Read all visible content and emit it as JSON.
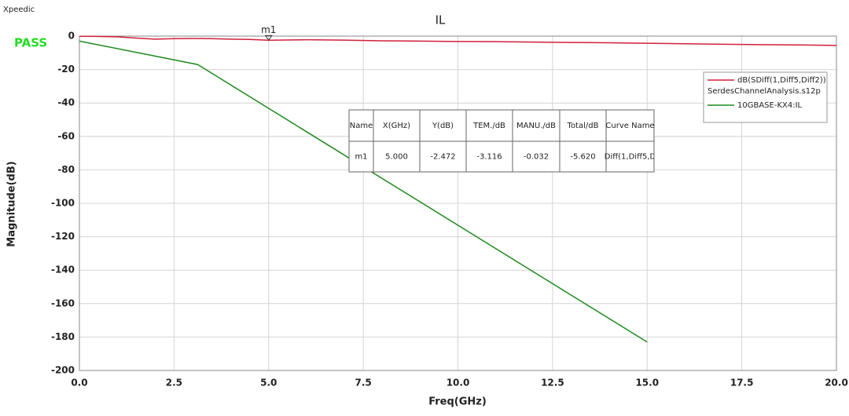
{
  "brand": "Xpeedic",
  "status": "PASS",
  "chart_data": {
    "type": "line",
    "title": "IL",
    "x_label": "Freq(GHz)",
    "y_label": "Magnitude(dB)",
    "xlim": [
      0,
      20
    ],
    "ylim": [
      -200,
      0
    ],
    "xticks": [
      {
        "value": 0,
        "label": "0.0"
      },
      2.5,
      {
        "value": 5,
        "label": "5.0"
      },
      7.5,
      {
        "value": 10,
        "label": "10.0"
      },
      12.5,
      {
        "value": 15,
        "label": "15.0"
      },
      17.5,
      {
        "value": 20,
        "label": "20.0"
      }
    ],
    "yticks": [
      0,
      -20,
      -40,
      -60,
      -80,
      -100,
      -120,
      -140,
      -160,
      -180,
      -200
    ],
    "grid": true,
    "legend": "upper right",
    "series": [
      {
        "name": "dB(SDiff(1,Diff5,Diff2))",
        "file": "SerdesChannelAnalysis.s12p",
        "color": "#d0203c",
        "x": [
          0,
          0.5,
          1,
          1.5,
          2,
          2.5,
          3,
          3.5,
          4,
          4.5,
          5,
          6,
          7,
          8,
          9,
          10,
          11,
          12,
          13,
          14,
          15,
          16,
          17,
          18,
          19,
          20
        ],
        "values": [
          -0.1,
          -0.2,
          -0.4,
          -1.2,
          -1.8,
          -1.5,
          -1.4,
          -1.5,
          -1.8,
          -2.0,
          -2.472,
          -2.2,
          -2.4,
          -2.8,
          -3.0,
          -3.2,
          -3.3,
          -3.6,
          -3.8,
          -4.0,
          -4.3,
          -4.6,
          -4.9,
          -5.1,
          -5.3,
          -5.6
        ]
      },
      {
        "name": "10GBASE-KX4:IL",
        "color": "#1e8a1e",
        "x": [
          0,
          3.125,
          15
        ],
        "values": [
          -3,
          -17,
          -183
        ]
      }
    ],
    "marker": {
      "label": "m1",
      "x": 5,
      "y": -2.472
    },
    "marker_table": {
      "header": [
        "Name",
        "X(GHz)",
        "Y(dB)",
        "TEM./dB",
        "MANU./dB",
        "Total/dB",
        "Curve Name"
      ],
      "rows": [
        [
          "m1",
          "5.000",
          "-2.472",
          "-3.116",
          "-0.032",
          "-5.620",
          "Diff(1,Diff5,D"
        ]
      ]
    }
  }
}
